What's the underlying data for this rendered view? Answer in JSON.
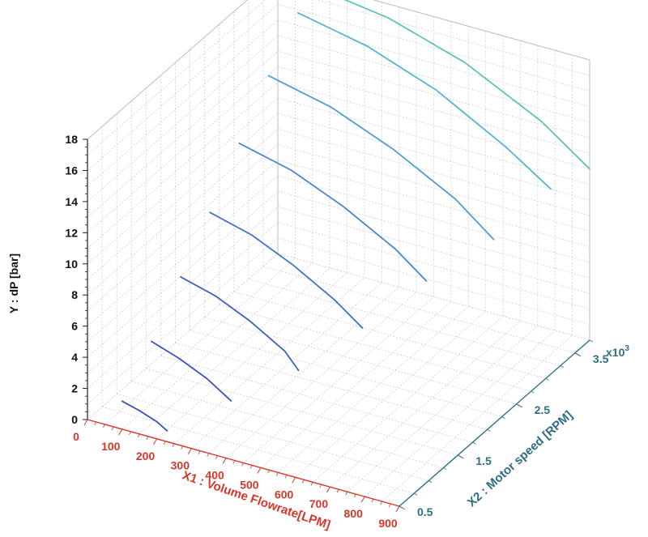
{
  "chart_data": {
    "type": "line",
    "view": "3d",
    "ylabel": "Y : dP [bar]",
    "x1label": "X1 : Volume Flowrate[LPM]",
    "x2label": "X2 : Motor speed [RPM]",
    "x2_multiplier": "x10",
    "x2_multiplier_exp": "3",
    "ylim": [
      0,
      18
    ],
    "x1lim": [
      0,
      900
    ],
    "x2lim": [
      0.5,
      3.75
    ],
    "y_ticks": [
      "0",
      "2",
      "4",
      "6",
      "8",
      "10",
      "12",
      "14",
      "16",
      "18"
    ],
    "x1_ticks": [
      "0",
      "100",
      "200",
      "300",
      "400",
      "500",
      "600",
      "700",
      "800",
      "900"
    ],
    "x2_ticks": [
      "0.5",
      "1.5",
      "2.5",
      "3.5"
    ],
    "grid": true,
    "series": [
      {
        "x2": 0.5,
        "color": "#3a4fb0",
        "x1": [
          100,
          150,
          200,
          230
        ],
        "y": [
          1.8,
          1.5,
          1.1,
          0.7
        ]
      },
      {
        "x2": 1.0,
        "color": "#3b52b6",
        "x1": [
          100,
          180,
          260,
          330
        ],
        "y": [
          4.0,
          3.4,
          2.6,
          1.6
        ]
      },
      {
        "x2": 1.5,
        "color": "#3f5fbf",
        "x1": [
          100,
          200,
          300,
          400,
          440
        ],
        "y": [
          6.5,
          5.9,
          4.9,
          3.6,
          2.6
        ]
      },
      {
        "x2": 2.0,
        "color": "#4470c6",
        "x1": [
          100,
          220,
          340,
          460,
          540
        ],
        "y": [
          9.0,
          8.3,
          7.1,
          5.6,
          4.3
        ]
      },
      {
        "x2": 2.5,
        "color": "#4a86cc",
        "x1": [
          100,
          250,
          400,
          550,
          640
        ],
        "y": [
          11.8,
          11.0,
          9.6,
          7.8,
          6.3
        ]
      },
      {
        "x2": 3.0,
        "color": "#4e9fd0",
        "x1": [
          100,
          280,
          460,
          640,
          750
        ],
        "y": [
          14.5,
          13.6,
          12.0,
          9.9,
          8.0
        ]
      },
      {
        "x2": 3.5,
        "color": "#55b4cf",
        "x1": [
          100,
          300,
          500,
          700,
          830
        ],
        "y": [
          16.9,
          16.0,
          14.4,
          12.0,
          10.1
        ]
      },
      {
        "x2": 3.75,
        "color": "#5cc3b8",
        "x1": [
          100,
          320,
          540,
          760,
          900
        ],
        "y": [
          17.8,
          17.1,
          15.6,
          13.2,
          11.0
        ]
      }
    ]
  }
}
